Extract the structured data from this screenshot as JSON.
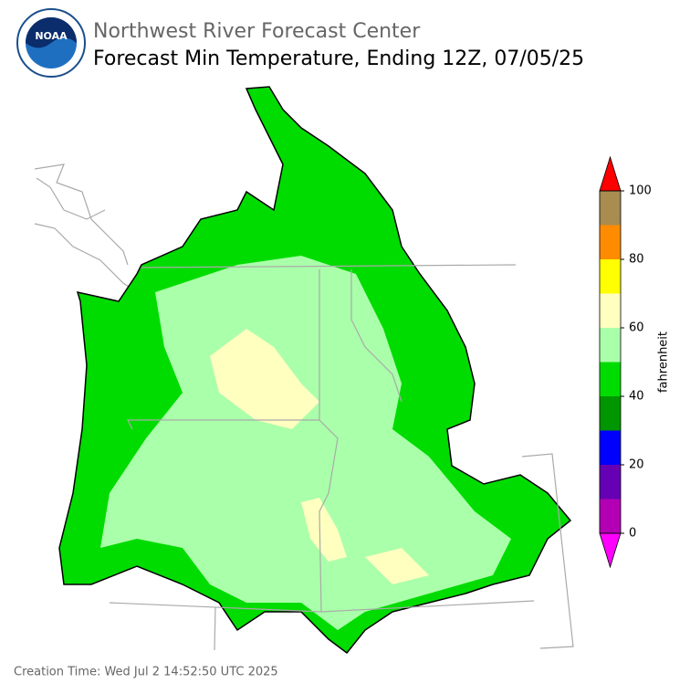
{
  "header": {
    "logo_text": "NOAA",
    "agency": "Northwest River Forecast Center",
    "title": "Forecast Min Temperature, Ending 12Z, 07/05/25"
  },
  "colorbar": {
    "label": "fahrenheit",
    "lim": [
      0,
      100
    ],
    "bounds": [
      0,
      10,
      20,
      30,
      40,
      50,
      60,
      70,
      80,
      90,
      100
    ],
    "colors": [
      "#b400b4",
      "#6600b4",
      "#0000ff",
      "#009600",
      "#00dc00",
      "#aaffaa",
      "#ffffc0",
      "#ffff00",
      "#ff8c00",
      "#a88c50"
    ],
    "under_color": "#ff00ff",
    "over_color": "#ff0000",
    "ticks": [
      0,
      20,
      40,
      60,
      80,
      100
    ]
  },
  "footer": "Creation Time: Wed Jul 2 14:52:50 UTC 2025"
}
